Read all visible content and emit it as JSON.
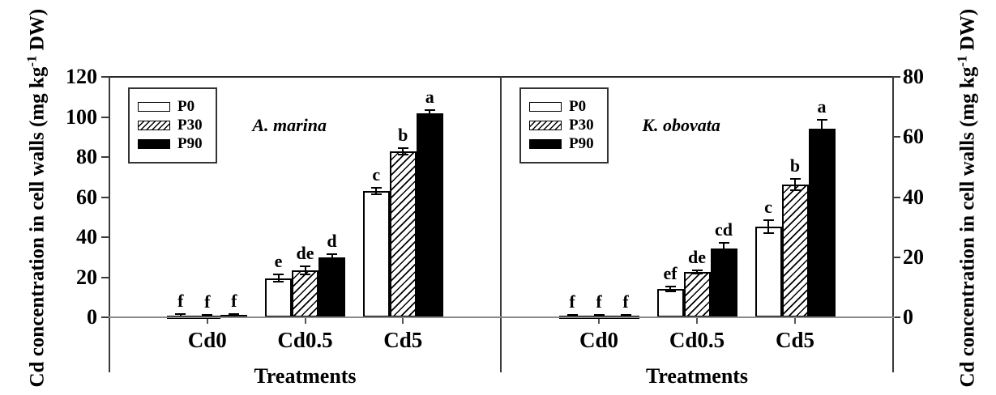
{
  "axes": {
    "y_label": {
      "before_sup": "Cd concentration in cell walls (mg kg",
      "sup": "-1",
      "after_sup": " DW)"
    },
    "x_label": "Treatments"
  },
  "colors": {
    "bar_outline": "#000000",
    "bar_fill_p0": "#ffffff",
    "bar_fill_p90": "#000000",
    "axis_line": "#3a3a3a",
    "zero_line": "#8a8a8a"
  },
  "chart_data": [
    {
      "type": "bar",
      "panel_label": "A. marina",
      "categories": [
        "Cd0",
        "Cd0.5",
        "Cd5"
      ],
      "xlabel": "Treatments",
      "ylim": [
        0,
        120
      ],
      "yticks": [
        0,
        20,
        40,
        60,
        80,
        100,
        120
      ],
      "y_axis_side": "left",
      "legend_position": "upper-left",
      "grid": false,
      "series": [
        {
          "name": "P0",
          "fill": "white",
          "values": [
            1.0,
            19.5,
            63.0
          ],
          "errors": [
            0.4,
            1.8,
            1.6
          ],
          "letters": [
            "f",
            "e",
            "c"
          ]
        },
        {
          "name": "P30",
          "fill": "hatch",
          "values": [
            0.8,
            23.5,
            82.8
          ],
          "errors": [
            0.4,
            2.0,
            1.6
          ],
          "letters": [
            "f",
            "de",
            "b"
          ]
        },
        {
          "name": "P90",
          "fill": "black",
          "values": [
            1.2,
            30.0,
            102.0
          ],
          "errors": [
            0.4,
            1.6,
            1.4
          ],
          "letters": [
            "f",
            "d",
            "a"
          ]
        }
      ]
    },
    {
      "type": "bar",
      "panel_label": "K. obovata",
      "categories": [
        "Cd0",
        "Cd0.5",
        "Cd5"
      ],
      "xlabel": "Treatments",
      "ylim": [
        0,
        80
      ],
      "yticks": [
        0,
        20,
        40,
        60,
        80
      ],
      "y_axis_side": "right",
      "legend_position": "upper-left",
      "grid": false,
      "series": [
        {
          "name": "P0",
          "fill": "white",
          "values": [
            0.3,
            9.4,
            30.2
          ],
          "errors": [
            0.15,
            0.8,
            2.2
          ],
          "letters": [
            "f",
            "ef",
            "c"
          ]
        },
        {
          "name": "P30",
          "fill": "hatch",
          "values": [
            0.3,
            15.1,
            44.2
          ],
          "errors": [
            0.15,
            0.5,
            1.8
          ],
          "letters": [
            "f",
            "de",
            "b"
          ]
        },
        {
          "name": "P90",
          "fill": "black",
          "values": [
            0.4,
            22.8,
            62.8
          ],
          "errors": [
            0.15,
            2.0,
            3.0
          ],
          "letters": [
            "f",
            "cd",
            "a"
          ]
        }
      ]
    }
  ]
}
